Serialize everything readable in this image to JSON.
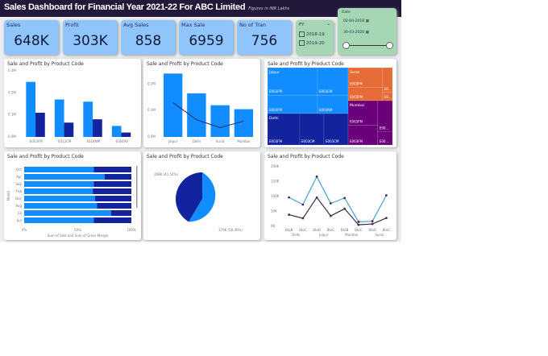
{
  "header": {
    "title": "Sales Dashboard for Financial Year 2021-22 For ABC Limited",
    "subtitle": "Figures in INR Lakhs"
  },
  "kpis": [
    {
      "label": "Sales",
      "value": "648K"
    },
    {
      "label": "Profit",
      "value": "303K"
    },
    {
      "label": "Avg Sales",
      "value": "858"
    },
    {
      "label": "Max Sale",
      "value": "6959"
    },
    {
      "label": "No of Tran",
      "value": "756"
    }
  ],
  "fy_slicer": {
    "label": "FY",
    "options": [
      "2018-19",
      "2019-20"
    ]
  },
  "date_slicer": {
    "label": "Date",
    "start": "02-04-2018",
    "end": "30-03-2020"
  },
  "colors": {
    "sales": "#118dff",
    "profit": "#12239e",
    "orange": "#e66c37",
    "purple": "#6b007b"
  },
  "chart_data": [
    {
      "type": "bar",
      "title": "Sale and Profit by Product Code",
      "categories": [
        "E003FM",
        "E012CM",
        "E018NM",
        "E004AV"
      ],
      "yticks": [
        "0.0M",
        "0.1M",
        "0.2M",
        "0.3M"
      ],
      "ylim": [
        0,
        0.3
      ],
      "series": [
        {
          "values": [
            0.25,
            0.17,
            0.16,
            0.05
          ]
        },
        {
          "values": [
            0.11,
            0.065,
            0.08,
            0.02
          ]
        }
      ]
    },
    {
      "type": "bar",
      "title": "Sale and Profit by Product Code",
      "categories": [
        "Jaipur",
        "Delhi",
        "Surat",
        "Mumbai"
      ],
      "yticks": [
        "0.0M",
        "0.1M",
        "0.2M"
      ],
      "ylim": [
        0,
        0.25
      ],
      "series": [
        {
          "values": [
            0.24,
            0.165,
            0.12,
            0.105
          ]
        },
        {
          "type": "line",
          "values": [
            0.13,
            0.065,
            0.035,
            0.06
          ]
        }
      ]
    },
    {
      "type": "treemap",
      "title": "Sale and Profit by Product Code",
      "groups": [
        {
          "name": "Jaipur",
          "items": [
            "E003FM",
            "E003CM",
            "E003FM",
            "E003AM"
          ]
        },
        {
          "name": "Delhi",
          "items": [
            "E003FM",
            "E003CM",
            "E003CM"
          ]
        },
        {
          "name": "Surat",
          "items": [
            "E003FM",
            "E003FM",
            "E0...",
            "E0..."
          ]
        },
        {
          "name": "Mumbai",
          "items": [
            "E003FM",
            "E003FM",
            "E00...",
            "E00..."
          ]
        }
      ]
    },
    {
      "type": "bar",
      "orientation": "horizontal",
      "stacked100": true,
      "title": "Sale and Profit by Product Code",
      "categories": [
        "Oct",
        "Apr",
        "Sep",
        "Feb",
        "Dec",
        "Aug",
        "Jul",
        "Jun"
      ],
      "ylabel": "Month",
      "xlabel": "Sum of Sale and Sum of Gross Margin",
      "xticks": [
        "0%",
        "50%",
        "100%"
      ],
      "series": [
        {
          "values": [
            65,
            75,
            65,
            64,
            66,
            68,
            81,
            65
          ]
        },
        {
          "values": [
            35,
            25,
            35,
            36,
            34,
            32,
            19,
            35
          ]
        }
      ]
    },
    {
      "type": "pie",
      "title": "Sale and Profit by Product Code",
      "slices": [
        {
          "label": "269K (41.54%)",
          "value": 269
        },
        {
          "label": "379K (58.46%)",
          "value": 379
        }
      ]
    },
    {
      "type": "line",
      "title": "Sale and Profit by Product Code",
      "categories": [
        "BtoB",
        "BtoC",
        "BtoB",
        "BtoC",
        "BtoB",
        "BtoC",
        "BtoB",
        "BtoC"
      ],
      "groups": [
        "Delhi",
        "Jaipur",
        "Mumbai",
        "Surat"
      ],
      "yticks": [
        "0K",
        "50K",
        "100K",
        "150K",
        "200K"
      ],
      "ylim": [
        0,
        200
      ],
      "series": [
        {
          "values": [
            97,
            73,
            167,
            77,
            95,
            15,
            17,
            104
          ]
        },
        {
          "values": [
            39,
            27,
            97,
            35,
            59,
            5,
            8,
            28
          ]
        }
      ]
    }
  ]
}
